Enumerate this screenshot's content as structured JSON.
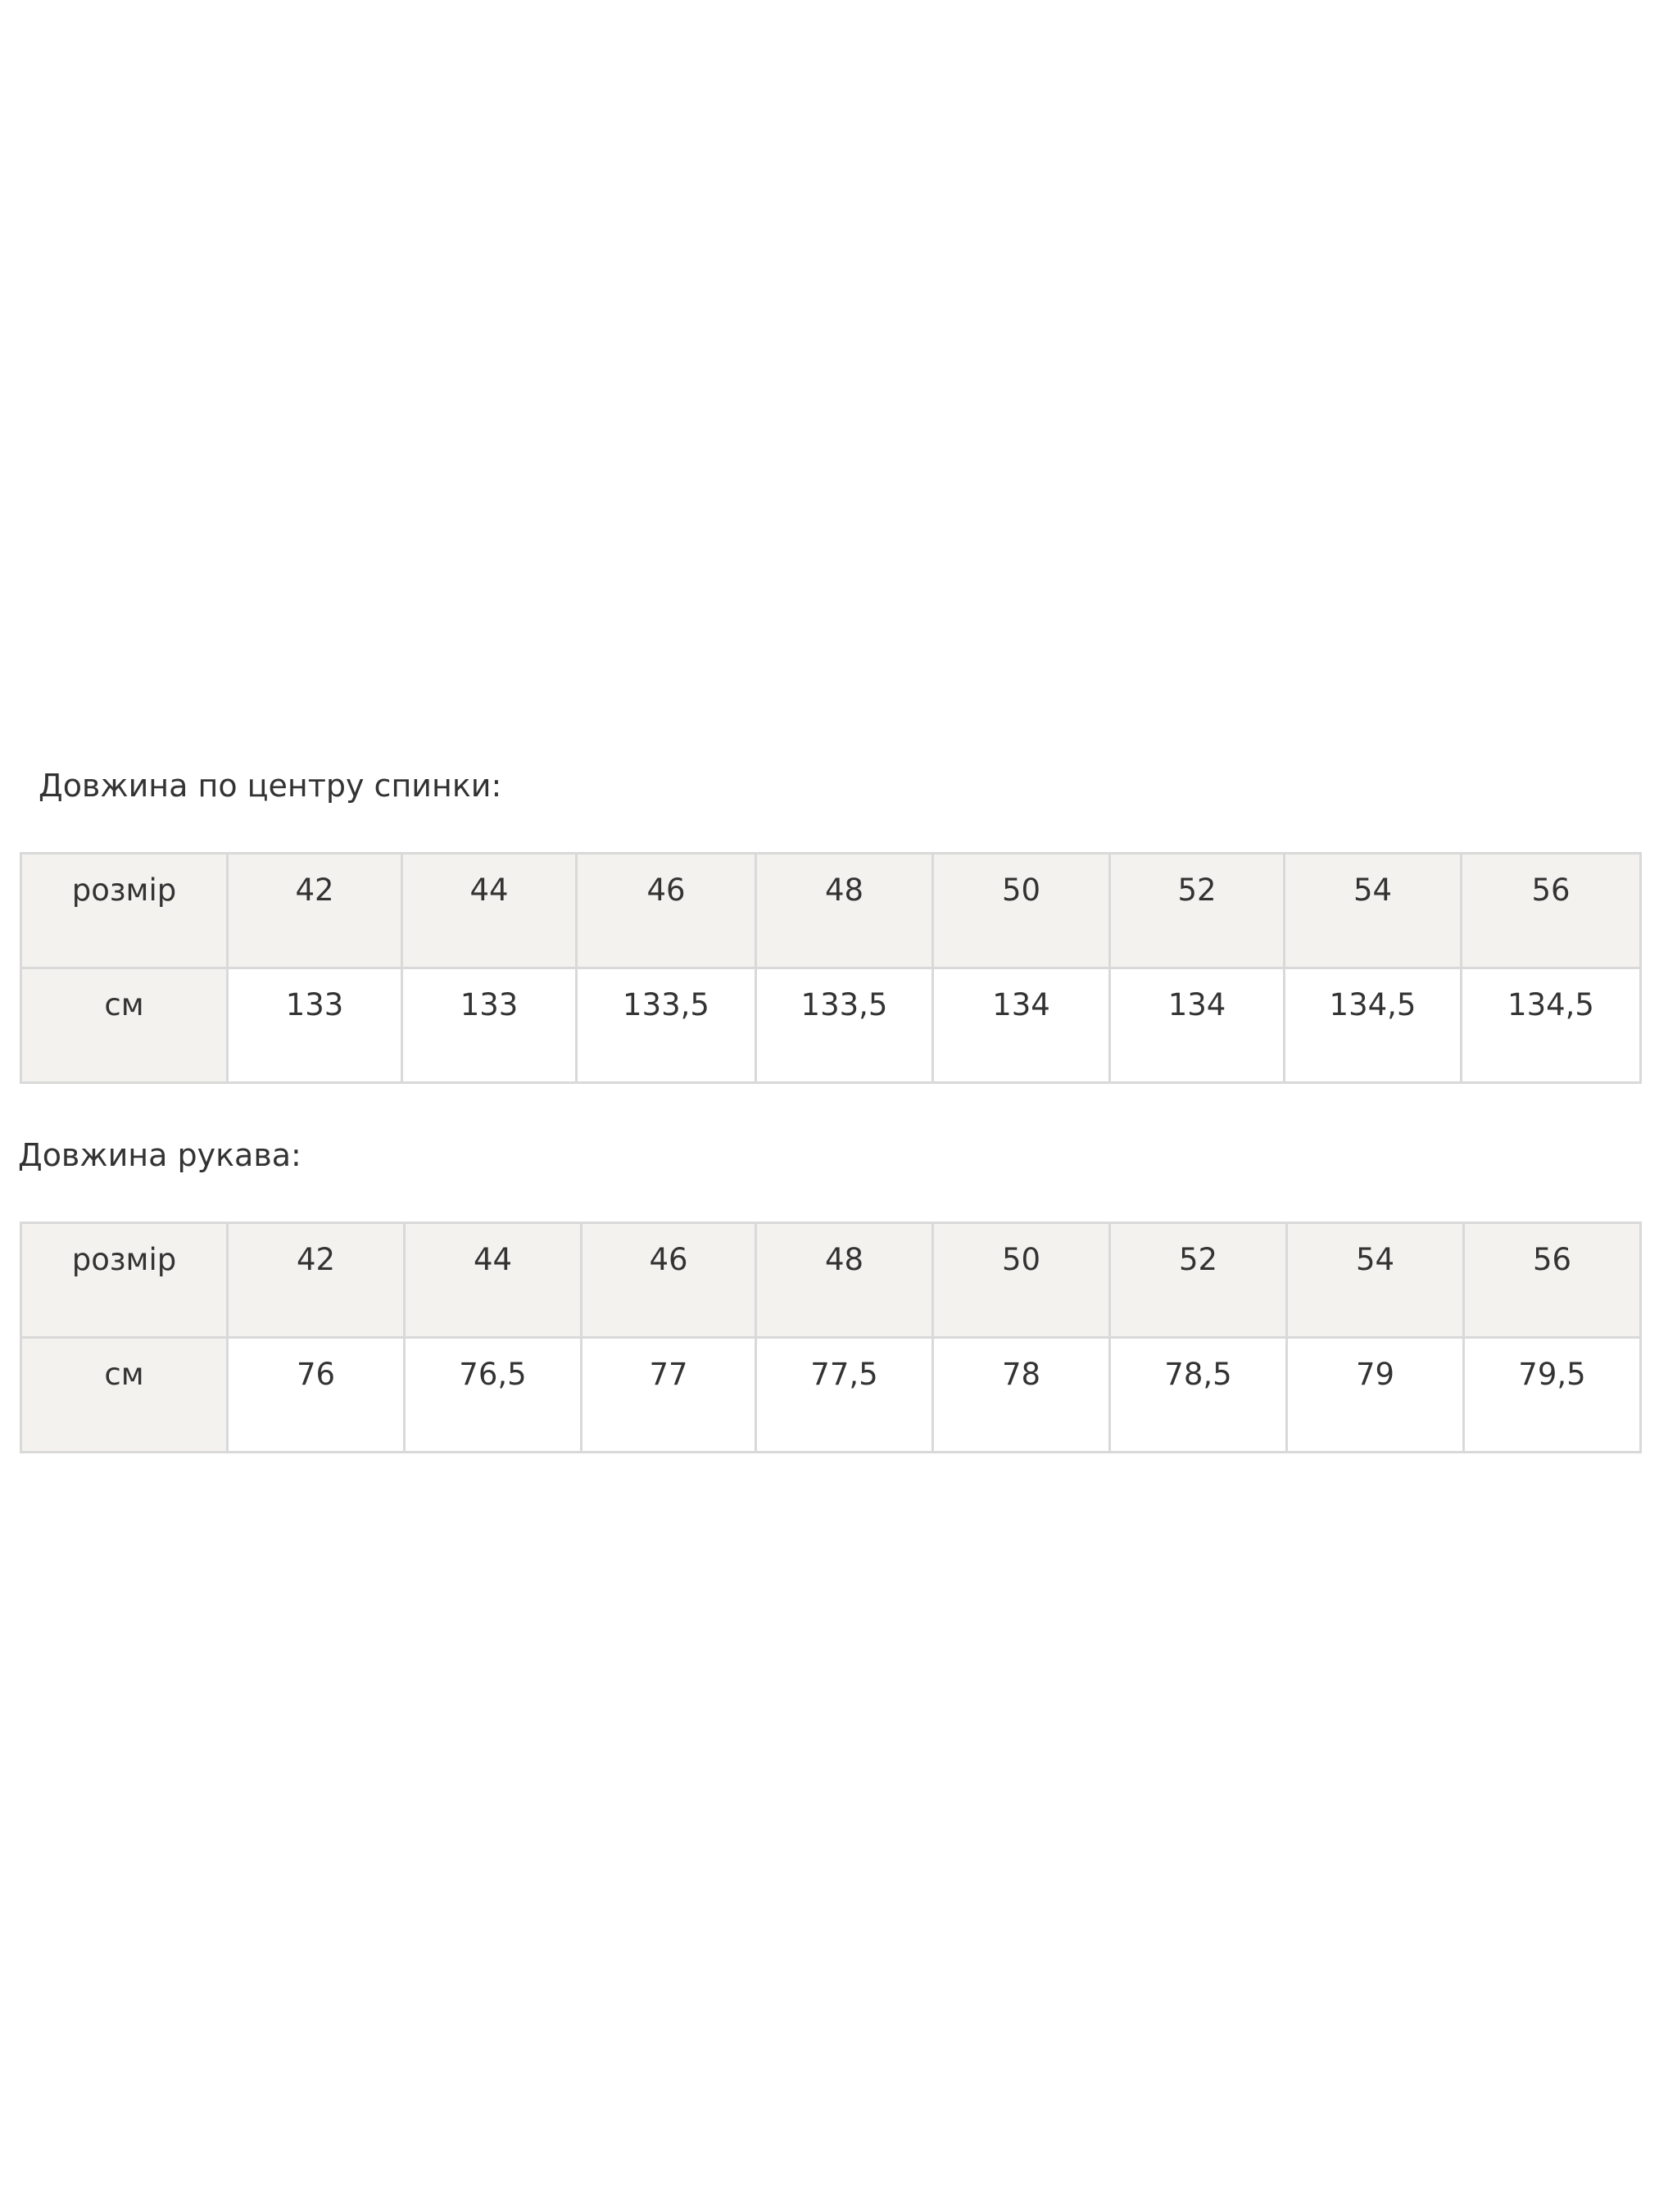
{
  "sections": [
    {
      "title": "Довжина по центру спинки:",
      "header_label": "розмір",
      "row_label": "см",
      "sizes": [
        "42",
        "44",
        "46",
        "48",
        "50",
        "52",
        "54",
        "56"
      ],
      "values": [
        "133",
        "133",
        "133,5",
        "133,5",
        "134",
        "134",
        "134,5",
        "134,5"
      ]
    },
    {
      "title": "Довжина рукава:",
      "header_label": "розмір",
      "row_label": "см",
      "sizes": [
        "42",
        "44",
        "46",
        "48",
        "50",
        "52",
        "54",
        "56"
      ],
      "values": [
        "76",
        "76,5",
        "77",
        "77,5",
        "78",
        "78,5",
        "79",
        "79,5"
      ]
    }
  ],
  "colors": {
    "header_bg": "#f4f2ee",
    "border": "#d9d9d9",
    "text": "#333333"
  }
}
